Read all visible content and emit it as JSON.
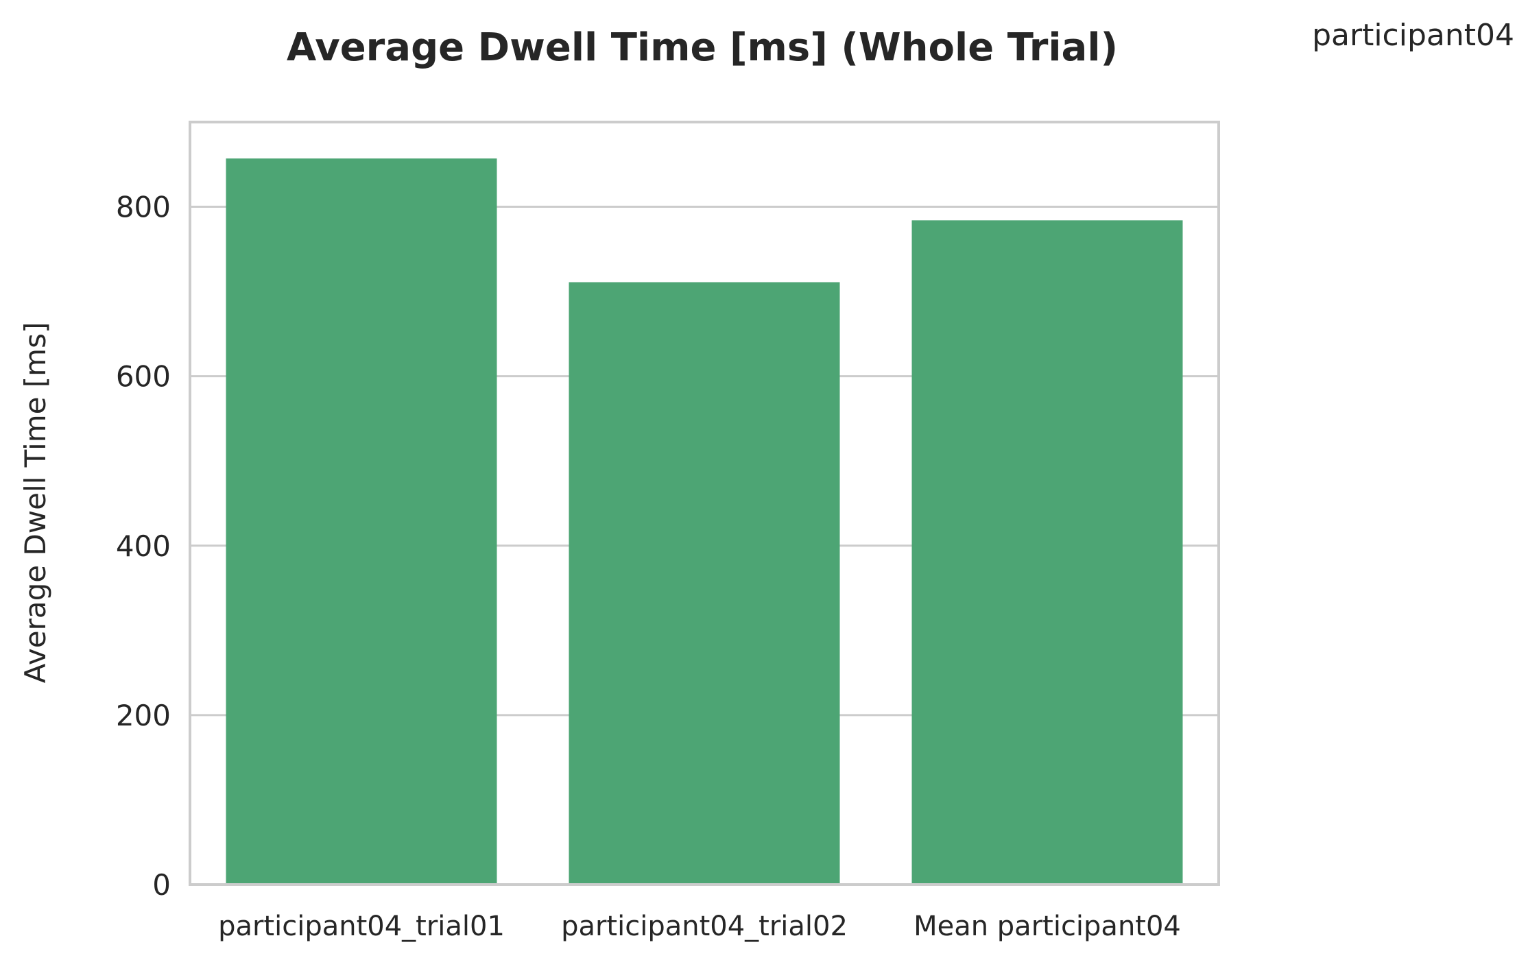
{
  "chart_data": {
    "type": "bar",
    "title": "Average Dwell Time [ms] (Whole Trial)",
    "corner_label": "participant04",
    "xlabel": "",
    "ylabel": "Average Dwell Time [ms]",
    "categories": [
      "participant04_trial01",
      "participant04_trial02",
      "Mean participant04"
    ],
    "values": [
      857,
      711,
      784
    ],
    "ylim": [
      0,
      900
    ],
    "yticks": [
      0,
      200,
      400,
      600,
      800
    ],
    "grid": "horizontal",
    "colors": {
      "bar": "#4da574",
      "grid": "#cccccc",
      "spine": "#cccccc",
      "text": "#262626"
    }
  }
}
